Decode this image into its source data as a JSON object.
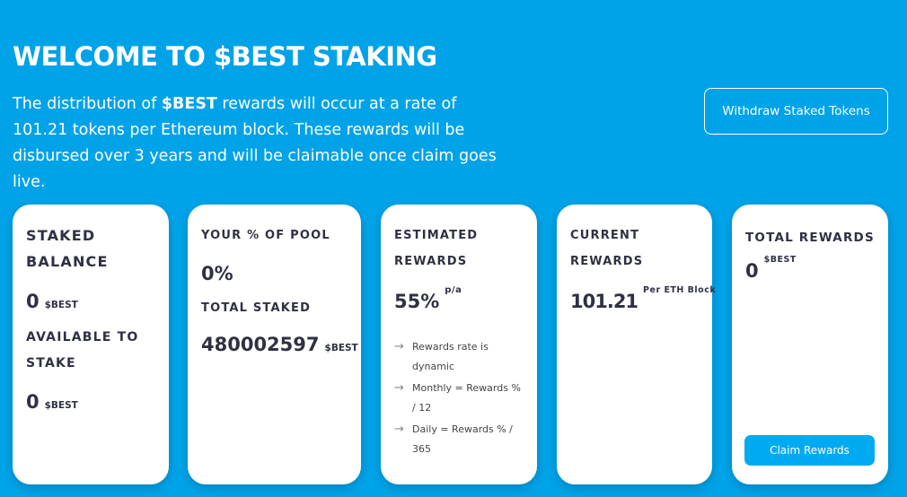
{
  "header": {
    "title": "WELCOME TO $BEST STAKING",
    "intro_pre": "The distribution of ",
    "intro_token": "$BEST",
    "intro_post": " rewards will occur at a rate of 101.21 tokens per Ethereum block. These rewards will be disbursed over 3 years and will be claimable once claim goes live.",
    "withdraw_label": "Withdraw Staked Tokens"
  },
  "cards": {
    "staked": {
      "label": "STAKED BALANCE",
      "value": "0",
      "unit": "$BEST",
      "available_label": "AVAILABLE TO STAKE",
      "available_value": "0",
      "available_unit": "$BEST"
    },
    "pool": {
      "label": "YOUR % OF POOL",
      "value": "0%",
      "total_label": "TOTAL STAKED",
      "total_value": "480002597",
      "total_unit": "$BEST"
    },
    "estimated": {
      "label": "ESTIMATED REWARDS",
      "value": "55%",
      "suffix": "p/a",
      "notes": [
        "Rewards rate is dynamic",
        "Monthly = Rewards % / 12",
        "Daily = Rewards % / 365"
      ]
    },
    "current": {
      "label": "CURRENT REWARDS",
      "value": "101.21",
      "suffix": "Per ETH Block"
    },
    "total": {
      "label": "TOTAL REWARDS",
      "value": "0",
      "unit": "$BEST",
      "claim_label": "Claim Rewards"
    }
  },
  "colors": {
    "background": "#00a2e8",
    "button": "#00aaf0",
    "text": "#2f3142"
  }
}
